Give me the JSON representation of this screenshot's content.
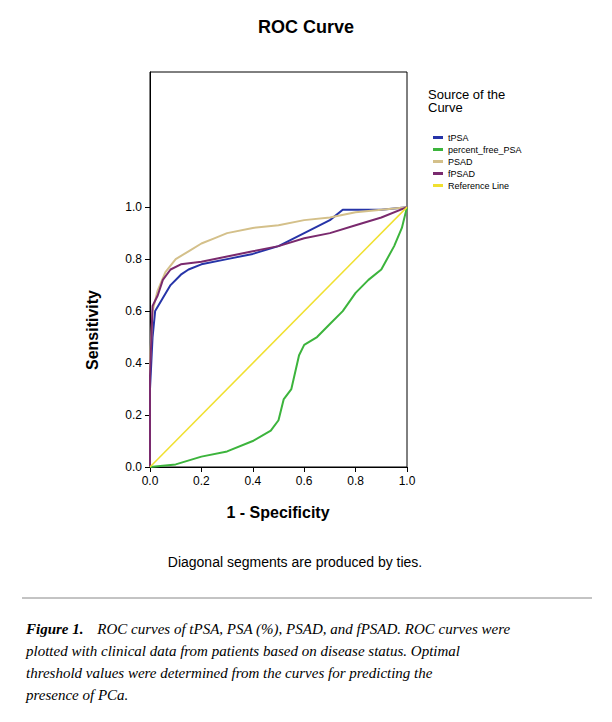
{
  "chart_data": {
    "type": "line",
    "title": "ROC Curve",
    "x_label": "1 - Specificity",
    "y_label": "Sensitivity",
    "legend_title": "Source of the Curve",
    "legend": "right",
    "grid": false,
    "footnote": "Diagonal segments are produced by ties.",
    "caption_label": "Figure 1.",
    "caption": "ROC curves of tPSA, PSA (%), PSAD, and fPSAD. ROC curves were plotted with clinical data from patients based on disease status. Optimal threshold values were determined from the curves for predicting the presence of PCa.",
    "xlim": [
      0,
      1
    ],
    "xticks": [
      {
        "value": 0,
        "label": "0.0"
      },
      {
        "value": 0.2,
        "label": "0.2"
      },
      {
        "value": 0.4,
        "label": "0.4"
      },
      {
        "value": 0.6,
        "label": "0.6"
      },
      {
        "value": 0.8,
        "label": "0.8"
      },
      {
        "value": 1,
        "label": "1.0"
      }
    ],
    "ylim": [
      0,
      1.52
    ],
    "yticks": [
      {
        "value": 0,
        "label": "0.0"
      },
      {
        "value": 0.2,
        "label": "0.2"
      },
      {
        "value": 0.4,
        "label": "0.4"
      },
      {
        "value": 0.6,
        "label": "0.6"
      },
      {
        "value": 0.8,
        "label": "0.8"
      },
      {
        "value": 1,
        "label": "1.0"
      }
    ],
    "series": [
      {
        "name": "tPSA",
        "color": "#2634a8",
        "values": [
          [
            0,
            0
          ],
          [
            0,
            0.3
          ],
          [
            0.01,
            0.5
          ],
          [
            0.02,
            0.6
          ],
          [
            0.05,
            0.65
          ],
          [
            0.08,
            0.7
          ],
          [
            0.12,
            0.74
          ],
          [
            0.15,
            0.76
          ],
          [
            0.2,
            0.78
          ],
          [
            0.3,
            0.8
          ],
          [
            0.4,
            0.82
          ],
          [
            0.5,
            0.85
          ],
          [
            0.6,
            0.9
          ],
          [
            0.7,
            0.95
          ],
          [
            0.75,
            0.99
          ],
          [
            0.9,
            0.99
          ],
          [
            1,
            1
          ]
        ]
      },
      {
        "name": "percent_free_PSA",
        "color": "#3cb43c",
        "values": [
          [
            0,
            0
          ],
          [
            0.1,
            0.01
          ],
          [
            0.2,
            0.04
          ],
          [
            0.3,
            0.06
          ],
          [
            0.4,
            0.1
          ],
          [
            0.47,
            0.14
          ],
          [
            0.5,
            0.18
          ],
          [
            0.52,
            0.26
          ],
          [
            0.55,
            0.3
          ],
          [
            0.58,
            0.43
          ],
          [
            0.6,
            0.47
          ],
          [
            0.65,
            0.5
          ],
          [
            0.7,
            0.55
          ],
          [
            0.75,
            0.6
          ],
          [
            0.8,
            0.67
          ],
          [
            0.85,
            0.72
          ],
          [
            0.9,
            0.76
          ],
          [
            0.95,
            0.85
          ],
          [
            0.98,
            0.92
          ],
          [
            1,
            1
          ]
        ]
      },
      {
        "name": "PSAD",
        "color": "#d4c08a",
        "values": [
          [
            0,
            0
          ],
          [
            0,
            0.4
          ],
          [
            0.01,
            0.6
          ],
          [
            0.03,
            0.68
          ],
          [
            0.06,
            0.75
          ],
          [
            0.1,
            0.8
          ],
          [
            0.15,
            0.83
          ],
          [
            0.2,
            0.86
          ],
          [
            0.25,
            0.88
          ],
          [
            0.3,
            0.9
          ],
          [
            0.4,
            0.92
          ],
          [
            0.5,
            0.93
          ],
          [
            0.6,
            0.95
          ],
          [
            0.7,
            0.96
          ],
          [
            0.8,
            0.98
          ],
          [
            0.9,
            0.99
          ],
          [
            1,
            1
          ]
        ]
      },
      {
        "name": "fPSAD",
        "color": "#7a2a6e",
        "values": [
          [
            0,
            0
          ],
          [
            0,
            0.35
          ],
          [
            0.01,
            0.62
          ],
          [
            0.03,
            0.66
          ],
          [
            0.05,
            0.72
          ],
          [
            0.08,
            0.76
          ],
          [
            0.12,
            0.78
          ],
          [
            0.2,
            0.79
          ],
          [
            0.3,
            0.81
          ],
          [
            0.4,
            0.83
          ],
          [
            0.5,
            0.85
          ],
          [
            0.6,
            0.88
          ],
          [
            0.7,
            0.9
          ],
          [
            0.8,
            0.93
          ],
          [
            0.9,
            0.96
          ],
          [
            1,
            1
          ]
        ]
      },
      {
        "name": "Reference Line",
        "color": "#f0e030",
        "values": [
          [
            0,
            0
          ],
          [
            1,
            1
          ]
        ]
      }
    ]
  }
}
